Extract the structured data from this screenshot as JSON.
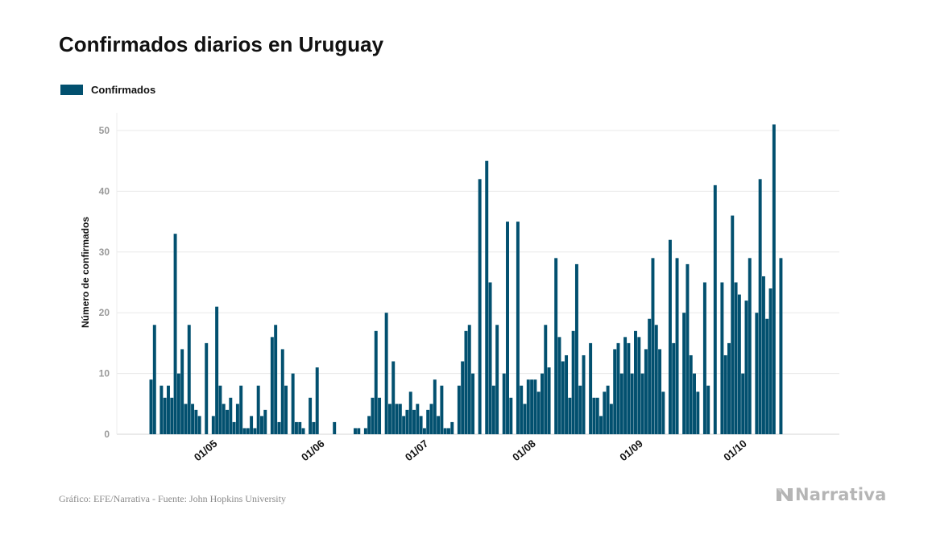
{
  "page": {
    "title": "Confirmados diarios en Uruguay",
    "source": "Gráfico: EFE/Narrativa - Fuente: John Hopkins University",
    "brand": "Narrativa",
    "brand_icon": "narrativa-logo-icon"
  },
  "colors": {
    "bar": "#02506f",
    "grid": "#e8e8e8",
    "axis_text": "#999999",
    "title": "#111111",
    "footer": "#8a8a8a",
    "brand": "#b5b5b5"
  },
  "chart_data": {
    "type": "bar",
    "title": "Confirmados diarios en Uruguay",
    "xlabel": "",
    "ylabel": "Número de confirmados",
    "ylim": [
      0,
      52
    ],
    "yticks": [
      0,
      10,
      20,
      30,
      40,
      50
    ],
    "grid": true,
    "legend_position": "top-left",
    "x_start": "2020-04-14",
    "x_end": "2020-10-20",
    "xtick_labels": [
      {
        "date": "2020-05-01",
        "label": "01/05"
      },
      {
        "date": "2020-06-01",
        "label": "01/06"
      },
      {
        "date": "2020-07-01",
        "label": "01/07"
      },
      {
        "date": "2020-08-01",
        "label": "01/08"
      },
      {
        "date": "2020-09-01",
        "label": "01/09"
      },
      {
        "date": "2020-10-01",
        "label": "01/10"
      }
    ],
    "series": [
      {
        "name": "Confirmados",
        "color": "#02506f",
        "points": [
          [
            "2020-04-14",
            9
          ],
          [
            "2020-04-15",
            18
          ],
          [
            "2020-04-16",
            0
          ],
          [
            "2020-04-17",
            8
          ],
          [
            "2020-04-18",
            6
          ],
          [
            "2020-04-19",
            8
          ],
          [
            "2020-04-20",
            6
          ],
          [
            "2020-04-21",
            33
          ],
          [
            "2020-04-22",
            10
          ],
          [
            "2020-04-23",
            14
          ],
          [
            "2020-04-24",
            5
          ],
          [
            "2020-04-25",
            18
          ],
          [
            "2020-04-26",
            5
          ],
          [
            "2020-04-27",
            4
          ],
          [
            "2020-04-28",
            3
          ],
          [
            "2020-04-29",
            0
          ],
          [
            "2020-04-30",
            15
          ],
          [
            "2020-05-01",
            0
          ],
          [
            "2020-05-02",
            3
          ],
          [
            "2020-05-03",
            21
          ],
          [
            "2020-05-04",
            8
          ],
          [
            "2020-05-05",
            5
          ],
          [
            "2020-05-06",
            4
          ],
          [
            "2020-05-07",
            6
          ],
          [
            "2020-05-08",
            2
          ],
          [
            "2020-05-09",
            5
          ],
          [
            "2020-05-10",
            8
          ],
          [
            "2020-05-11",
            1
          ],
          [
            "2020-05-12",
            1
          ],
          [
            "2020-05-13",
            3
          ],
          [
            "2020-05-14",
            1
          ],
          [
            "2020-05-15",
            8
          ],
          [
            "2020-05-16",
            3
          ],
          [
            "2020-05-17",
            4
          ],
          [
            "2020-05-18",
            0
          ],
          [
            "2020-05-19",
            16
          ],
          [
            "2020-05-20",
            18
          ],
          [
            "2020-05-21",
            2
          ],
          [
            "2020-05-22",
            14
          ],
          [
            "2020-05-23",
            8
          ],
          [
            "2020-05-24",
            0
          ],
          [
            "2020-05-25",
            10
          ],
          [
            "2020-05-26",
            2
          ],
          [
            "2020-05-27",
            2
          ],
          [
            "2020-05-28",
            1
          ],
          [
            "2020-05-29",
            0
          ],
          [
            "2020-05-30",
            6
          ],
          [
            "2020-05-31",
            2
          ],
          [
            "2020-06-01",
            11
          ],
          [
            "2020-06-02",
            0
          ],
          [
            "2020-06-03",
            0
          ],
          [
            "2020-06-04",
            0
          ],
          [
            "2020-06-05",
            0
          ],
          [
            "2020-06-06",
            2
          ],
          [
            "2020-06-07",
            0
          ],
          [
            "2020-06-08",
            0
          ],
          [
            "2020-06-09",
            0
          ],
          [
            "2020-06-10",
            0
          ],
          [
            "2020-06-11",
            0
          ],
          [
            "2020-06-12",
            1
          ],
          [
            "2020-06-13",
            1
          ],
          [
            "2020-06-14",
            0
          ],
          [
            "2020-06-15",
            1
          ],
          [
            "2020-06-16",
            3
          ],
          [
            "2020-06-17",
            6
          ],
          [
            "2020-06-18",
            17
          ],
          [
            "2020-06-19",
            6
          ],
          [
            "2020-06-20",
            0
          ],
          [
            "2020-06-21",
            20
          ],
          [
            "2020-06-22",
            5
          ],
          [
            "2020-06-23",
            12
          ],
          [
            "2020-06-24",
            5
          ],
          [
            "2020-06-25",
            5
          ],
          [
            "2020-06-26",
            3
          ],
          [
            "2020-06-27",
            4
          ],
          [
            "2020-06-28",
            7
          ],
          [
            "2020-06-29",
            4
          ],
          [
            "2020-06-30",
            5
          ],
          [
            "2020-07-01",
            3
          ],
          [
            "2020-07-02",
            1
          ],
          [
            "2020-07-03",
            4
          ],
          [
            "2020-07-04",
            5
          ],
          [
            "2020-07-05",
            9
          ],
          [
            "2020-07-06",
            3
          ],
          [
            "2020-07-07",
            8
          ],
          [
            "2020-07-08",
            1
          ],
          [
            "2020-07-09",
            1
          ],
          [
            "2020-07-10",
            2
          ],
          [
            "2020-07-11",
            0
          ],
          [
            "2020-07-12",
            8
          ],
          [
            "2020-07-13",
            12
          ],
          [
            "2020-07-14",
            17
          ],
          [
            "2020-07-15",
            18
          ],
          [
            "2020-07-16",
            10
          ],
          [
            "2020-07-17",
            0
          ],
          [
            "2020-07-18",
            42
          ],
          [
            "2020-07-19",
            0
          ],
          [
            "2020-07-20",
            45
          ],
          [
            "2020-07-21",
            25
          ],
          [
            "2020-07-22",
            8
          ],
          [
            "2020-07-23",
            18
          ],
          [
            "2020-07-24",
            0
          ],
          [
            "2020-07-25",
            10
          ],
          [
            "2020-07-26",
            35
          ],
          [
            "2020-07-27",
            6
          ],
          [
            "2020-07-28",
            0
          ],
          [
            "2020-07-29",
            35
          ],
          [
            "2020-07-30",
            8
          ],
          [
            "2020-07-31",
            5
          ],
          [
            "2020-08-01",
            9
          ],
          [
            "2020-08-02",
            9
          ],
          [
            "2020-08-03",
            9
          ],
          [
            "2020-08-04",
            7
          ],
          [
            "2020-08-05",
            10
          ],
          [
            "2020-08-06",
            18
          ],
          [
            "2020-08-07",
            11
          ],
          [
            "2020-08-08",
            0
          ],
          [
            "2020-08-09",
            29
          ],
          [
            "2020-08-10",
            16
          ],
          [
            "2020-08-11",
            12
          ],
          [
            "2020-08-12",
            13
          ],
          [
            "2020-08-13",
            6
          ],
          [
            "2020-08-14",
            17
          ],
          [
            "2020-08-15",
            28
          ],
          [
            "2020-08-16",
            8
          ],
          [
            "2020-08-17",
            13
          ],
          [
            "2020-08-18",
            0
          ],
          [
            "2020-08-19",
            15
          ],
          [
            "2020-08-20",
            6
          ],
          [
            "2020-08-21",
            6
          ],
          [
            "2020-08-22",
            3
          ],
          [
            "2020-08-23",
            7
          ],
          [
            "2020-08-24",
            8
          ],
          [
            "2020-08-25",
            5
          ],
          [
            "2020-08-26",
            14
          ],
          [
            "2020-08-27",
            15
          ],
          [
            "2020-08-28",
            10
          ],
          [
            "2020-08-29",
            16
          ],
          [
            "2020-08-30",
            15
          ],
          [
            "2020-08-31",
            10
          ],
          [
            "2020-09-01",
            17
          ],
          [
            "2020-09-02",
            16
          ],
          [
            "2020-09-03",
            10
          ],
          [
            "2020-09-04",
            14
          ],
          [
            "2020-09-05",
            19
          ],
          [
            "2020-09-06",
            29
          ],
          [
            "2020-09-07",
            18
          ],
          [
            "2020-09-08",
            14
          ],
          [
            "2020-09-09",
            7
          ],
          [
            "2020-09-10",
            0
          ],
          [
            "2020-09-11",
            32
          ],
          [
            "2020-09-12",
            15
          ],
          [
            "2020-09-13",
            29
          ],
          [
            "2020-09-14",
            0
          ],
          [
            "2020-09-15",
            20
          ],
          [
            "2020-09-16",
            28
          ],
          [
            "2020-09-17",
            13
          ],
          [
            "2020-09-18",
            10
          ],
          [
            "2020-09-19",
            7
          ],
          [
            "2020-09-20",
            0
          ],
          [
            "2020-09-21",
            25
          ],
          [
            "2020-09-22",
            8
          ],
          [
            "2020-09-23",
            0
          ],
          [
            "2020-09-24",
            41
          ],
          [
            "2020-09-25",
            0
          ],
          [
            "2020-09-26",
            25
          ],
          [
            "2020-09-27",
            13
          ],
          [
            "2020-09-28",
            15
          ],
          [
            "2020-09-29",
            36
          ],
          [
            "2020-09-30",
            25
          ],
          [
            "2020-10-01",
            23
          ],
          [
            "2020-10-02",
            10
          ],
          [
            "2020-10-03",
            22
          ],
          [
            "2020-10-04",
            29
          ],
          [
            "2020-10-05",
            0
          ],
          [
            "2020-10-06",
            20
          ],
          [
            "2020-10-07",
            42
          ],
          [
            "2020-10-08",
            26
          ],
          [
            "2020-10-09",
            19
          ],
          [
            "2020-10-10",
            24
          ],
          [
            "2020-10-11",
            51
          ],
          [
            "2020-10-12",
            0
          ],
          [
            "2020-10-13",
            29
          ]
        ]
      }
    ]
  }
}
